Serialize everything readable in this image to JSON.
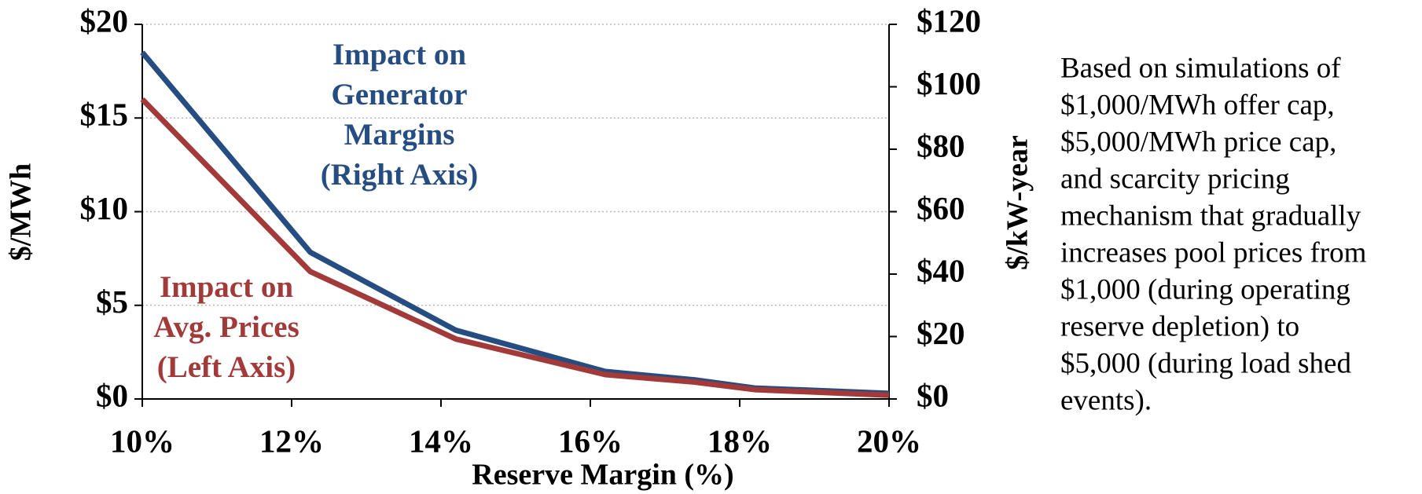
{
  "chart_data": {
    "type": "line",
    "x_label": "Reserve Margin (%)",
    "y_label": "$/MWh",
    "y2_label": "$/kW-year",
    "x": [
      10,
      12.25,
      14.2,
      16.2,
      17.4,
      18.2,
      20
    ],
    "series": [
      {
        "name": "Impact on Generator Margins (Right Axis)",
        "color": "#264d82",
        "axis": "y2",
        "values": [
          111,
          47,
          22,
          8.8,
          6.1,
          3.5,
          1.8
        ]
      },
      {
        "name": "Impact on Avg. Prices (Left Axis)",
        "color": "#a23a3a",
        "values": [
          16,
          6.8,
          3.2,
          1.3,
          0.9,
          0.5,
          0.2
        ]
      }
    ],
    "annotations": [
      {
        "lines": [
          "Impact on",
          "Generator",
          "Margins",
          "(Right Axis)"
        ],
        "color": "#264d82"
      },
      {
        "lines": [
          "Impact on",
          "Avg. Prices",
          "(Left Axis)"
        ],
        "color": "#a23a3a"
      }
    ],
    "note": [
      "Based on simulations of",
      "$1,000/MWh offer cap,",
      "$5,000/MWh price cap,",
      "and scarcity pricing",
      "mechanism that gradually",
      "increases pool prices from",
      "$1,000 (during operating",
      "reserve depletion) to",
      "$5,000 (during load shed",
      "events)."
    ],
    "xlim": [
      10,
      20
    ],
    "xticks": [
      {
        "value": 10,
        "label": "10%"
      },
      {
        "value": 12,
        "label": "12%"
      },
      {
        "value": 14,
        "label": "14%"
      },
      {
        "value": 16,
        "label": "16%"
      },
      {
        "value": 18,
        "label": "18%"
      },
      {
        "value": 20,
        "label": "20%"
      }
    ],
    "ylim": [
      0,
      20
    ],
    "yticks": [
      {
        "value": 0,
        "label": "$0"
      },
      {
        "value": 5,
        "label": "$5"
      },
      {
        "value": 10,
        "label": "$10"
      },
      {
        "value": 15,
        "label": "$15"
      },
      {
        "value": 20,
        "label": "$20"
      }
    ],
    "y2lim": [
      0,
      120
    ],
    "y2ticks": [
      {
        "value": 0,
        "label": "$0"
      },
      {
        "value": 20,
        "label": "$20"
      },
      {
        "value": 40,
        "label": "$40"
      },
      {
        "value": 60,
        "label": "$60"
      },
      {
        "value": 80,
        "label": "$80"
      },
      {
        "value": 100,
        "label": "$100"
      },
      {
        "value": 120,
        "label": "$120"
      }
    ],
    "grid": true
  }
}
